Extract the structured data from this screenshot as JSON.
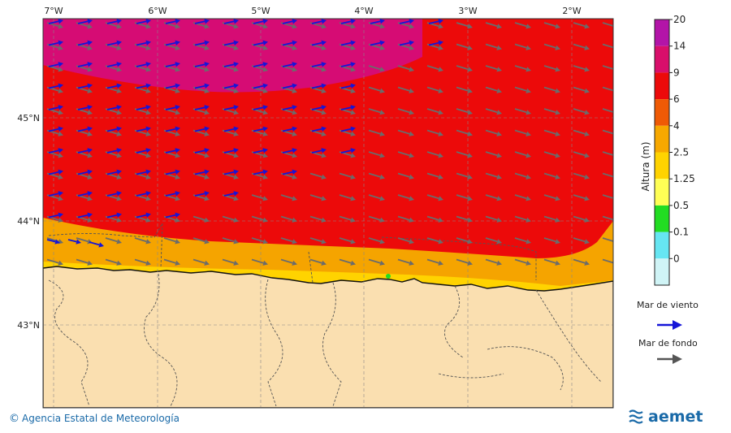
{
  "map": {
    "lon_ticks": [
      "7°W",
      "6°W",
      "5°W",
      "4°W",
      "3°W",
      "2°W"
    ],
    "lat_ticks": [
      "45°N",
      "44°N",
      "43°N"
    ]
  },
  "legend": {
    "title": "Altura (m)",
    "ticks": [
      "20",
      "14",
      "9",
      "6",
      "4",
      "2.5",
      "1.25",
      "0.5",
      "0.1",
      "0"
    ],
    "colors": [
      "#b314a8",
      "#d90f6b",
      "#ec0a0a",
      "#ef5a05",
      "#f7a800",
      "#ffd300",
      "#ffff55",
      "#22dd22",
      "#66e6f2",
      "#d0f4f6"
    ],
    "wind_sea_label": "Mar de viento",
    "wind_sea_color": "#1515d8",
    "swell_label": "Mar de fondo",
    "swell_color": "#666666"
  },
  "colors": {
    "land": "#fadfb0",
    "sea_9_14": "#d60c74",
    "sea_6_9": "#ec0a0a",
    "sea_4_6": "#f5a400"
  },
  "footer": {
    "credit": "Agencia Estatal de Meteorología",
    "logo": "aemet"
  }
}
